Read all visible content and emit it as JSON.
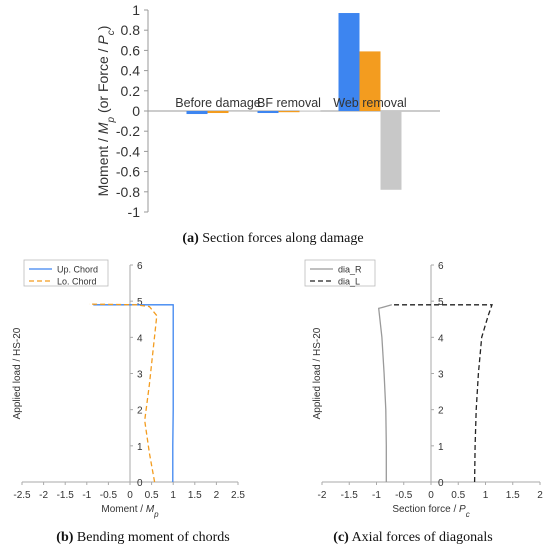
{
  "captions": {
    "a": {
      "letter": "(a)",
      "text": " Section forces along damage"
    },
    "b": {
      "letter": "(b)",
      "text": " Bending moment of chords"
    },
    "c": {
      "letter": "(c)",
      "text": " Axial forces of diagonals"
    }
  },
  "chart_data": [
    {
      "type": "bar",
      "title": "",
      "ylabel": "Moment / Mp (or Force / Pc)",
      "ylabel_parts": [
        "Moment / ",
        "M",
        "p",
        " (or Force / ",
        "P",
        "c",
        ")"
      ],
      "ylim": [
        -1,
        1
      ],
      "yticks": [
        -1,
        -0.8,
        -0.6,
        -0.4,
        -0.2,
        0,
        0.2,
        0.4,
        0.6,
        0.8,
        1
      ],
      "ytick_labels": [
        "-1",
        "-0.8",
        "-0.6",
        "-0.4",
        "-0.2",
        "0",
        "0.2",
        "0.4",
        "0.6",
        "0.8",
        "1"
      ],
      "categories": [
        "Before damage",
        "BF removal",
        "Web removal"
      ],
      "series": [
        {
          "color": "#3d85f0",
          "values": [
            -0.03,
            -0.02,
            0.97
          ]
        },
        {
          "color": "#f39c1f",
          "values": [
            -0.02,
            -0.01,
            0.59
          ]
        },
        {
          "color": "#c8c8c8",
          "values": [
            0.01,
            0.005,
            -0.78
          ]
        }
      ],
      "grid": false
    },
    {
      "type": "line",
      "xlabel": "Moment / Mp",
      "xlabel_parts": [
        "Moment / ",
        "M",
        "p"
      ],
      "ylabel": "Applied load / HS-20",
      "xlim": [
        -2.5,
        2.5
      ],
      "ylim": [
        0,
        6
      ],
      "xticks": [
        -2.5,
        -2,
        -1.5,
        -1,
        -0.5,
        0,
        0.5,
        1,
        1.5,
        2,
        2.5
      ],
      "xtick_labels": [
        "-2.5",
        "-2",
        "-1.5",
        "-1",
        "-0.5",
        "0",
        "0.5",
        "1",
        "1.5",
        "2",
        "2.5"
      ],
      "yticks": [
        0,
        1,
        2,
        3,
        4,
        5,
        6
      ],
      "ytick_labels": [
        "0",
        "1",
        "2",
        "3",
        "4",
        "5",
        "6"
      ],
      "legend": "top-left",
      "series": [
        {
          "name": "Up. Chord",
          "color": "#3d85f0",
          "dash": "solid",
          "x": [
            0.99,
            0.99,
            1.0,
            1.0,
            1.0,
            0.45,
            -0.85
          ],
          "y": [
            0,
            1.0,
            2.0,
            3.0,
            4.9,
            4.9,
            4.9
          ]
        },
        {
          "name": "Lo. Chord",
          "color": "#f39c1f",
          "dash": "dashed",
          "x": [
            0.57,
            0.45,
            0.34,
            0.45,
            0.62,
            0.45,
            0.15,
            -0.95
          ],
          "y": [
            0,
            0.8,
            1.7,
            2.7,
            4.6,
            4.85,
            4.9,
            4.92
          ]
        }
      ]
    },
    {
      "type": "line",
      "xlabel": "Section force / Pc",
      "xlabel_parts": [
        "Section force / ",
        "P",
        "c"
      ],
      "ylabel": "Applied load / HS-20",
      "xlim": [
        -2,
        2
      ],
      "ylim": [
        0,
        6
      ],
      "xticks": [
        -2,
        -1.5,
        -1,
        -0.5,
        0,
        0.5,
        1,
        1.5,
        2
      ],
      "xtick_labels": [
        "-2",
        "-1.5",
        "-1",
        "-0.5",
        "0",
        "0.5",
        "1",
        "1.5",
        "2"
      ],
      "yticks": [
        0,
        1,
        2,
        3,
        4,
        5,
        6
      ],
      "ytick_labels": [
        "0",
        "1",
        "2",
        "3",
        "4",
        "5",
        "6"
      ],
      "legend": "top-left",
      "series": [
        {
          "name": "dia_R",
          "color": "#9a9a9a",
          "dash": "solid",
          "x": [
            -0.82,
            -0.82,
            -0.83,
            -0.86,
            -0.9,
            -0.96,
            -0.72
          ],
          "y": [
            0,
            1.0,
            2.0,
            3.0,
            4.0,
            4.8,
            4.9
          ]
        },
        {
          "name": "dia_L",
          "color": "#222222",
          "dash": "dashed",
          "x": [
            0.8,
            0.81,
            0.83,
            0.87,
            0.93,
            1.05,
            1.12,
            -0.72
          ],
          "y": [
            0,
            1.0,
            2.0,
            3.0,
            4.0,
            4.6,
            4.9,
            4.9
          ]
        }
      ]
    }
  ]
}
